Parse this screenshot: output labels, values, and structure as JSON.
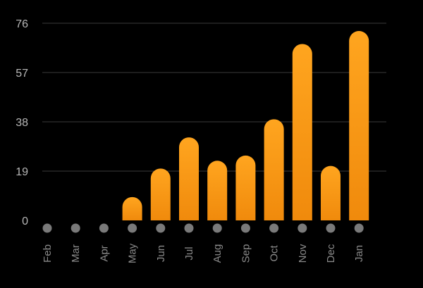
{
  "chart_data": {
    "type": "bar",
    "title": "",
    "xlabel": "",
    "ylabel": "",
    "categories": [
      "Feb",
      "Mar",
      "Apr",
      "May",
      "Jun",
      "Jul",
      "Aug",
      "Sep",
      "Oct",
      "Nov",
      "Dec",
      "Jan"
    ],
    "values": [
      0,
      0,
      0,
      9,
      20,
      32,
      23,
      25,
      39,
      68,
      21,
      73
    ],
    "ylim": [
      0,
      76
    ],
    "yticks": [
      0,
      19,
      38,
      57,
      76
    ],
    "grid": true,
    "colors": {
      "bar_top": "#ffa51f",
      "bar_bottom": "#f08a0c",
      "marker": "#7a7a7a",
      "grid": "#3a3a3a",
      "background": "#000000"
    }
  }
}
